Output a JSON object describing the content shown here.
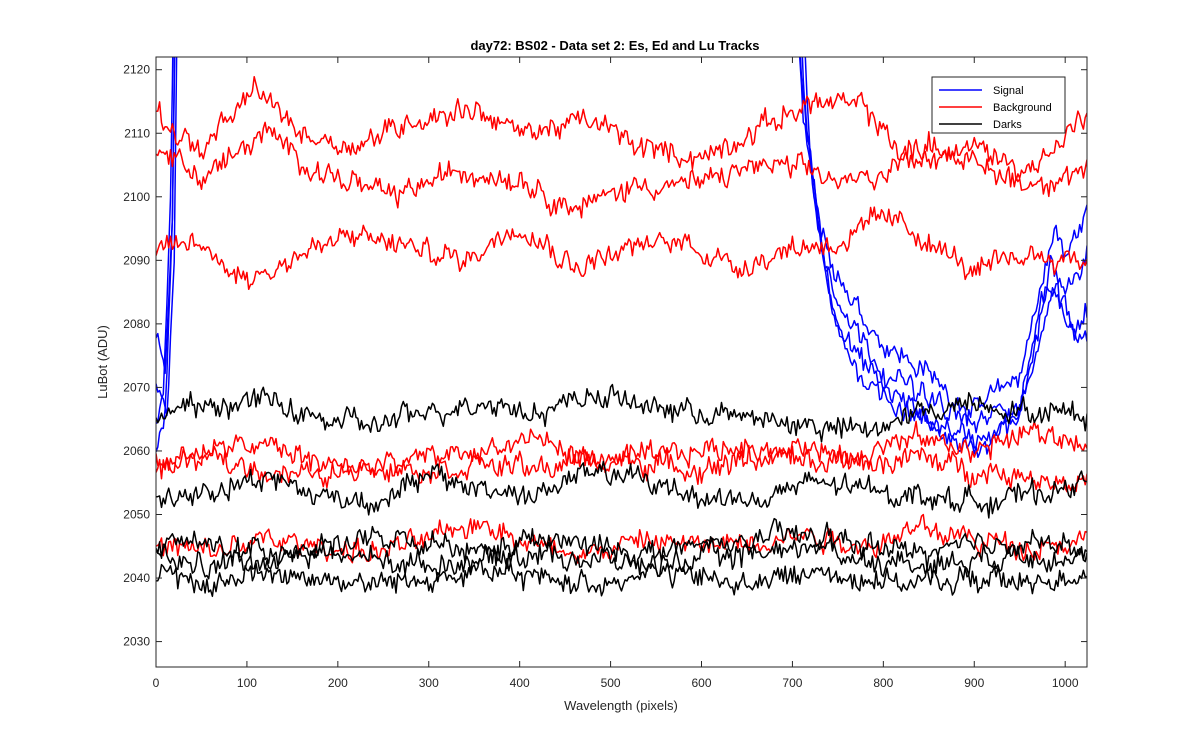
{
  "chart_data": {
    "type": "line",
    "title": "day72: BS02 - Data set 2: Es, Ed and Lu Tracks",
    "xlabel": "Wavelength (pixels)",
    "ylabel": "LuBot (ADU)",
    "xlim": [
      0,
      1024
    ],
    "ylim": [
      2026,
      2122
    ],
    "xticks": [
      0,
      100,
      200,
      300,
      400,
      500,
      600,
      700,
      800,
      900,
      1000
    ],
    "yticks": [
      2030,
      2040,
      2050,
      2060,
      2070,
      2080,
      2090,
      2100,
      2110,
      2120
    ],
    "grid": false,
    "legend_position": "top-right",
    "legend": [
      {
        "label": "Signal",
        "color": "#0000ff"
      },
      {
        "label": "Background",
        "color": "#ff0000"
      },
      {
        "label": "Darks",
        "color": "#000000"
      }
    ],
    "series": [
      {
        "group": "Signal",
        "color": "#0000ff",
        "approx": true,
        "x": [
          0,
          10,
          18,
          22,
          700,
          710,
          730,
          760,
          800,
          850,
          900,
          950,
          980,
          990,
          1000,
          1024
        ],
        "y": [
          2078,
          2072,
          2095,
          2140,
          2140,
          2120,
          2095,
          2085,
          2077,
          2072,
          2066,
          2072,
          2090,
          2095,
          2090,
          2098
        ]
      },
      {
        "group": "Signal",
        "color": "#0000ff",
        "approx": true,
        "x": [
          0,
          12,
          20,
          24,
          705,
          715,
          740,
          770,
          800,
          850,
          900,
          950,
          975,
          990,
          1000,
          1024
        ],
        "y": [
          2070,
          2066,
          2090,
          2140,
          2140,
          2110,
          2085,
          2075,
          2070,
          2065,
          2062,
          2065,
          2080,
          2088,
          2085,
          2090
        ]
      },
      {
        "group": "Signal",
        "color": "#0000ff",
        "approx": true,
        "x": [
          0,
          8,
          16,
          20,
          708,
          720,
          745,
          775,
          810,
          860,
          910,
          950,
          980,
          995,
          1010,
          1024
        ],
        "y": [
          2063,
          2068,
          2100,
          2140,
          2140,
          2105,
          2080,
          2072,
          2068,
          2063,
          2060,
          2066,
          2085,
          2086,
          2080,
          2082
        ]
      },
      {
        "group": "Signal",
        "color": "#0000ff",
        "approx": true,
        "x": [
          0,
          10,
          18,
          22,
          700,
          712,
          735,
          765,
          800,
          850,
          900,
          950,
          985,
          1000,
          1024
        ],
        "y": [
          2060,
          2066,
          2095,
          2140,
          2140,
          2112,
          2090,
          2080,
          2073,
          2068,
          2064,
          2068,
          2090,
          2080,
          2078
        ]
      },
      {
        "group": "Background",
        "color": "#ff0000",
        "approx": true,
        "x": [
          0,
          50,
          110,
          160,
          220,
          280,
          350,
          400,
          480,
          530,
          600,
          680,
          720,
          780,
          830,
          900,
          960,
          1024
        ],
        "y": [
          2113,
          2107,
          2117,
          2110,
          2108,
          2112,
          2114,
          2110,
          2112,
          2108,
          2106,
          2112,
          2115,
          2114,
          2105,
          2108,
          2104,
          2113
        ]
      },
      {
        "group": "Background",
        "color": "#ff0000",
        "approx": true,
        "x": [
          0,
          50,
          120,
          180,
          260,
          330,
          400,
          460,
          530,
          600,
          660,
          720,
          760,
          800,
          850,
          900,
          960,
          1024
        ],
        "y": [
          2108,
          2103,
          2110,
          2104,
          2100,
          2104,
          2103,
          2098,
          2102,
          2102,
          2105,
          2104,
          2102,
          2104,
          2109,
          2105,
          2102,
          2104
        ]
      },
      {
        "group": "Background",
        "color": "#ff0000",
        "approx": true,
        "x": [
          0,
          40,
          100,
          160,
          220,
          280,
          340,
          400,
          460,
          520,
          580,
          640,
          700,
          760,
          800,
          840,
          900,
          960,
          1024
        ],
        "y": [
          2091,
          2093,
          2087,
          2091,
          2094,
          2092,
          2090,
          2096,
          2089,
          2092,
          2093,
          2089,
          2092,
          2093,
          2097,
          2094,
          2088,
          2091,
          2090
        ]
      },
      {
        "group": "Background",
        "color": "#ff0000",
        "approx": true,
        "x": [
          0,
          60,
          120,
          180,
          240,
          300,
          360,
          420,
          480,
          540,
          600,
          660,
          720,
          780,
          840,
          900,
          960,
          1024
        ],
        "y": [
          2058,
          2060,
          2061,
          2058,
          2057,
          2059,
          2060,
          2062,
          2058,
          2059,
          2060,
          2061,
          2058,
          2060,
          2062,
          2060,
          2063,
          2061
        ]
      },
      {
        "group": "Background",
        "color": "#ff0000",
        "approx": true,
        "x": [
          0,
          60,
          120,
          180,
          240,
          300,
          360,
          420,
          480,
          540,
          600,
          660,
          720,
          780,
          840,
          900,
          960,
          1024
        ],
        "y": [
          2057,
          2059,
          2057,
          2056,
          2058,
          2057,
          2058,
          2057,
          2059,
          2058,
          2057,
          2059,
          2060,
          2058,
          2059,
          2057,
          2056,
          2055
        ]
      },
      {
        "group": "Background",
        "color": "#ff0000",
        "approx": true,
        "x": [
          0,
          60,
          120,
          180,
          240,
          300,
          360,
          420,
          480,
          540,
          600,
          660,
          720,
          780,
          840,
          900,
          960,
          1024
        ],
        "y": [
          2045,
          2044,
          2046,
          2045,
          2044,
          2046,
          2049,
          2045,
          2044,
          2046,
          2045,
          2046,
          2047,
          2045,
          2048,
          2046,
          2045,
          2046
        ]
      },
      {
        "group": "Darks",
        "color": "#000000",
        "approx": true,
        "x": [
          0,
          60,
          120,
          180,
          240,
          300,
          360,
          420,
          480,
          540,
          600,
          660,
          720,
          780,
          840,
          900,
          960,
          1024
        ],
        "y": [
          2066,
          2067,
          2068,
          2065,
          2064,
          2066,
          2068,
          2066,
          2069,
          2067,
          2066,
          2065,
          2064,
          2063,
          2066,
          2068,
          2066,
          2066
        ]
      },
      {
        "group": "Darks",
        "color": "#000000",
        "approx": true,
        "x": [
          0,
          60,
          120,
          180,
          240,
          300,
          360,
          420,
          480,
          540,
          600,
          660,
          720,
          780,
          840,
          900,
          960,
          1024
        ],
        "y": [
          2052,
          2054,
          2056,
          2053,
          2052,
          2056,
          2054,
          2053,
          2057,
          2055,
          2053,
          2052,
          2055,
          2054,
          2053,
          2052,
          2053,
          2055
        ]
      },
      {
        "group": "Darks",
        "color": "#000000",
        "approx": true,
        "x": [
          0,
          60,
          120,
          180,
          240,
          300,
          360,
          420,
          480,
          540,
          600,
          660,
          720,
          780,
          840,
          900,
          960,
          1024
        ],
        "y": [
          2046,
          2045,
          2044,
          2045,
          2046,
          2045,
          2044,
          2046,
          2045,
          2044,
          2045,
          2046,
          2047,
          2045,
          2044,
          2045,
          2046,
          2044
        ]
      },
      {
        "group": "Darks",
        "color": "#000000",
        "approx": true,
        "x": [
          0,
          60,
          120,
          180,
          240,
          300,
          360,
          420,
          480,
          540,
          600,
          660,
          720,
          780,
          840,
          900,
          960,
          1024
        ],
        "y": [
          2043,
          2042,
          2043,
          2044,
          2043,
          2042,
          2043,
          2044,
          2043,
          2042,
          2043,
          2044,
          2045,
          2043,
          2042,
          2043,
          2044,
          2043
        ]
      },
      {
        "group": "Darks",
        "color": "#000000",
        "approx": true,
        "x": [
          0,
          60,
          120,
          180,
          240,
          300,
          360,
          420,
          480,
          540,
          600,
          660,
          720,
          780,
          840,
          900,
          960,
          1024
        ],
        "y": [
          2040,
          2039,
          2041,
          2040,
          2039,
          2040,
          2041,
          2040,
          2039,
          2041,
          2040,
          2039,
          2041,
          2040,
          2039,
          2040,
          2039,
          2041
        ]
      }
    ]
  }
}
